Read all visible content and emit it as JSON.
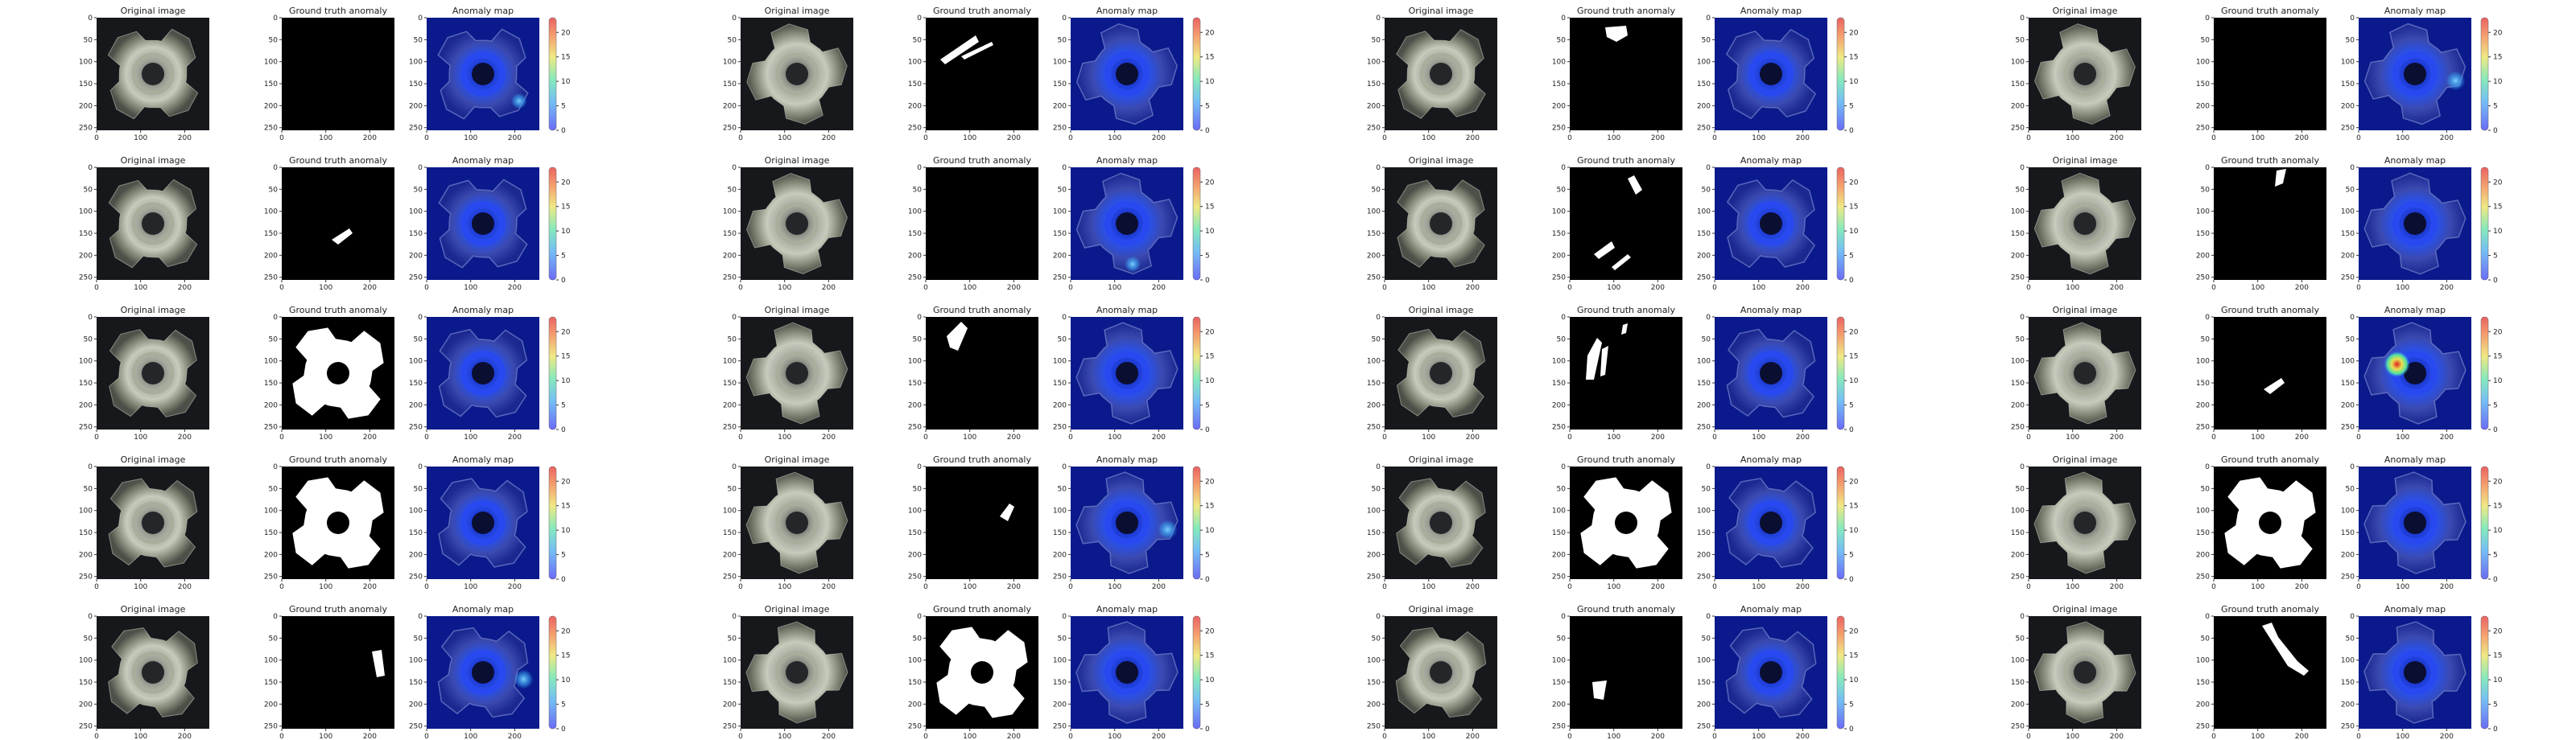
{
  "panel_titles": {
    "original": "Original image",
    "ground_truth": "Ground truth anomaly",
    "anomaly_map": "Anomaly map"
  },
  "axes": {
    "ticks": [
      0,
      50,
      100,
      150,
      200,
      250
    ],
    "x_ticks": [
      0,
      100,
      200
    ],
    "colorbar_ticks": [
      0,
      5,
      10,
      15,
      20
    ]
  },
  "colors": {
    "background_dark": "#16181c",
    "mask_white": "#ffffff",
    "heatmap_base": "#0a1a8c",
    "colormap": [
      "#2c2cf0",
      "#3aa0f0",
      "#52e0a0",
      "#e8e050",
      "#f07030",
      "#e02020"
    ]
  },
  "samples": [
    {
      "id": "r1c1",
      "mask": "none",
      "hotspot": "lower-right"
    },
    {
      "id": "r1c2",
      "mask": "scratch-top-left",
      "hotspot": "none"
    },
    {
      "id": "r1c3",
      "mask": "blob-top",
      "hotspot": "none"
    },
    {
      "id": "r1c4",
      "mask": "none",
      "hotspot": "right"
    },
    {
      "id": "r2c1",
      "mask": "small-center",
      "hotspot": "none"
    },
    {
      "id": "r2c2",
      "mask": "none",
      "hotspot": "bottom"
    },
    {
      "id": "r2c3",
      "mask": "two-strips",
      "hotspot": "none"
    },
    {
      "id": "r2c4",
      "mask": "blob-top-right",
      "hotspot": "none"
    },
    {
      "id": "r3c1",
      "mask": "full-part",
      "hotspot": "none"
    },
    {
      "id": "r3c2",
      "mask": "blob-top-left",
      "hotspot": "none"
    },
    {
      "id": "r3c3",
      "mask": "strips-left",
      "hotspot": "none"
    },
    {
      "id": "r3c4",
      "mask": "small-center",
      "hotspot": "center-red"
    },
    {
      "id": "r4c1",
      "mask": "full-part",
      "hotspot": "none"
    },
    {
      "id": "r4c2",
      "mask": "small-right",
      "hotspot": "right"
    },
    {
      "id": "r4c3",
      "mask": "full-part",
      "hotspot": "none"
    },
    {
      "id": "r4c4",
      "mask": "full-part",
      "hotspot": "none"
    },
    {
      "id": "r5c1",
      "mask": "small-right-low",
      "hotspot": "right"
    },
    {
      "id": "r5c2",
      "mask": "full-part",
      "hotspot": "none"
    },
    {
      "id": "r5c3",
      "mask": "blob-bottom-left",
      "hotspot": "none"
    },
    {
      "id": "r5c4",
      "mask": "long-diagonal",
      "hotspot": "none"
    }
  ]
}
